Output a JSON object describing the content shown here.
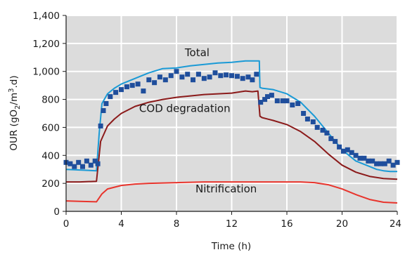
{
  "chart_data": {
    "type": "line",
    "xlabel": "Time (h)",
    "ylabel_parts": [
      "OUR (gO",
      "2",
      "/m",
      "3",
      ".d)"
    ],
    "xlim": [
      0,
      24
    ],
    "ylim": [
      0,
      1400
    ],
    "x_ticks": [
      0,
      4,
      8,
      12,
      16,
      20,
      24
    ],
    "y_ticks": [
      0,
      200,
      400,
      600,
      800,
      1000,
      1200,
      1400
    ],
    "y_tick_labels": [
      "0",
      "200",
      "400",
      "600",
      "800",
      "1,000",
      "1,200",
      "1,400"
    ],
    "grid": true,
    "colors": {
      "plot_bg": "#dcdcdc",
      "grid": "#ffffff",
      "total": "#1a9ad6",
      "cod": "#8b1a1a",
      "nitrification": "#e8342c",
      "measured": "#1f4e9c"
    },
    "annotations": [
      {
        "text": "Total",
        "x": 9.5,
        "y": 1110
      },
      {
        "text": "COD degradation",
        "x": 8.6,
        "y": 710
      },
      {
        "text": "Nitrification",
        "x": 11.6,
        "y": 135
      }
    ],
    "series": [
      {
        "key": "total",
        "style": "line",
        "color": "#1a9ad6",
        "x": [
          0,
          2.2,
          2.4,
          2.6,
          3,
          3.5,
          4,
          5,
          6,
          7,
          8,
          9,
          10,
          11,
          12,
          13,
          13.5,
          14,
          14.05,
          14.2,
          15,
          16,
          17,
          18,
          19,
          20,
          21,
          22,
          22.5,
          23,
          23.5,
          24
        ],
        "y": [
          300,
          290,
          560,
          770,
          840,
          880,
          910,
          950,
          990,
          1020,
          1025,
          1040,
          1050,
          1060,
          1065,
          1075,
          1075,
          1075,
          885,
          880,
          870,
          840,
          780,
          680,
          560,
          440,
          360,
          320,
          300,
          290,
          285,
          285
        ]
      },
      {
        "key": "cod",
        "style": "line",
        "color": "#8b1a1a",
        "x": [
          0,
          1,
          2.2,
          2.5,
          3,
          3.5,
          4,
          5,
          6,
          7,
          8,
          9,
          10,
          11,
          12,
          13,
          13.5,
          13.9,
          14.05,
          14.2,
          15,
          16,
          17,
          18,
          19,
          20,
          21,
          22,
          23,
          24
        ],
        "y": [
          210,
          210,
          215,
          500,
          610,
          660,
          700,
          750,
          780,
          800,
          815,
          825,
          835,
          840,
          845,
          860,
          855,
          860,
          680,
          670,
          650,
          620,
          570,
          500,
          410,
          330,
          280,
          250,
          235,
          230
        ]
      },
      {
        "key": "nitrification",
        "style": "line",
        "color": "#e8342c",
        "x": [
          0,
          1,
          2.2,
          2.6,
          3,
          4,
          5,
          6,
          8,
          10,
          12,
          14,
          16,
          17,
          18,
          19,
          20,
          21,
          22,
          23,
          24
        ],
        "y": [
          75,
          72,
          68,
          125,
          160,
          185,
          195,
          200,
          205,
          210,
          210,
          210,
          210,
          210,
          205,
          190,
          160,
          120,
          85,
          65,
          60
        ]
      },
      {
        "key": "measured",
        "style": "scatter",
        "color": "#1f4e9c",
        "x": [
          0,
          0.3,
          0.6,
          0.9,
          1.2,
          1.5,
          1.8,
          2.1,
          2.3,
          2.5,
          2.7,
          2.9,
          3.2,
          3.6,
          4,
          4.4,
          4.8,
          5.2,
          5.6,
          6,
          6.4,
          6.8,
          7.2,
          7.6,
          8,
          8.4,
          8.8,
          9.2,
          9.6,
          10,
          10.4,
          10.8,
          11.2,
          11.6,
          12,
          12.4,
          12.8,
          13.2,
          13.5,
          13.8,
          14.1,
          14.4,
          14.6,
          14.9,
          15.3,
          15.7,
          16,
          16.4,
          16.8,
          17.2,
          17.5,
          17.9,
          18.2,
          18.6,
          18.9,
          19.2,
          19.5,
          19.8,
          20.1,
          20.4,
          20.7,
          21,
          21.3,
          21.6,
          21.9,
          22.2,
          22.5,
          22.8,
          23.1,
          23.4,
          23.7,
          24
        ],
        "y": [
          350,
          340,
          320,
          350,
          320,
          360,
          330,
          360,
          340,
          610,
          720,
          770,
          820,
          850,
          870,
          890,
          900,
          910,
          860,
          940,
          920,
          960,
          940,
          970,
          1000,
          960,
          980,
          940,
          980,
          950,
          960,
          990,
          970,
          975,
          970,
          965,
          950,
          960,
          940,
          980,
          780,
          800,
          820,
          830,
          790,
          790,
          790,
          760,
          770,
          700,
          660,
          640,
          600,
          580,
          560,
          520,
          500,
          460,
          430,
          440,
          420,
          400,
          380,
          380,
          360,
          360,
          340,
          340,
          340,
          360,
          330,
          350
        ]
      }
    ]
  }
}
